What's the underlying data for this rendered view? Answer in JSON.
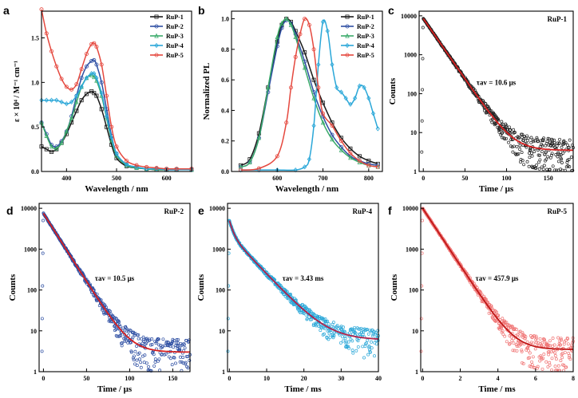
{
  "chart_data": [
    {
      "id": "a",
      "panel_label": "a",
      "type": "line",
      "xlabel": "Wavelength / nm",
      "ylabel": "ε × 10⁴ / M⁻¹ cm⁻¹",
      "xlim": [
        350,
        650
      ],
      "ylim": [
        0.0,
        1.8
      ],
      "yscale": "linear",
      "xticks": [
        400,
        500,
        600
      ],
      "yticks": [
        0.0,
        0.5,
        1.0,
        1.5
      ],
      "xtick_labels": [
        "400",
        "500",
        "600"
      ],
      "ytick_labels": [
        "0.0",
        "0.5",
        "1.0",
        "1.5"
      ],
      "legend": "top-right",
      "series": [
        {
          "name": "RuP-1",
          "color": "#1a1a1a",
          "marker": "square",
          "x": [
            350,
            360,
            370,
            380,
            390,
            400,
            410,
            420,
            430,
            440,
            450,
            455,
            460,
            470,
            480,
            490,
            500,
            520,
            540,
            560,
            580,
            600,
            620,
            650
          ],
          "y": [
            0.28,
            0.25,
            0.22,
            0.25,
            0.32,
            0.42,
            0.55,
            0.68,
            0.8,
            0.87,
            0.9,
            0.88,
            0.85,
            0.7,
            0.5,
            0.3,
            0.15,
            0.06,
            0.04,
            0.03,
            0.02,
            0.02,
            0.02,
            0.02
          ]
        },
        {
          "name": "RuP-2",
          "color": "#2e4fa3",
          "marker": "circle",
          "x": [
            350,
            360,
            370,
            380,
            390,
            400,
            410,
            420,
            430,
            440,
            450,
            455,
            460,
            470,
            480,
            490,
            500,
            520,
            540,
            560,
            580,
            600,
            620,
            650
          ],
          "y": [
            0.55,
            0.42,
            0.3,
            0.28,
            0.34,
            0.45,
            0.62,
            0.85,
            1.05,
            1.18,
            1.24,
            1.25,
            1.2,
            1.0,
            0.7,
            0.4,
            0.2,
            0.08,
            0.05,
            0.03,
            0.03,
            0.02,
            0.02,
            0.02
          ]
        },
        {
          "name": "RuP-3",
          "color": "#3aaa6a",
          "marker": "triangle",
          "x": [
            350,
            360,
            370,
            380,
            390,
            400,
            410,
            420,
            430,
            440,
            450,
            455,
            460,
            470,
            480,
            490,
            500,
            520,
            540,
            560,
            580,
            600,
            620,
            650
          ],
          "y": [
            0.55,
            0.4,
            0.28,
            0.26,
            0.32,
            0.45,
            0.6,
            0.78,
            0.95,
            1.05,
            1.08,
            1.06,
            1.02,
            0.85,
            0.6,
            0.35,
            0.18,
            0.07,
            0.04,
            0.03,
            0.02,
            0.02,
            0.02,
            0.02
          ]
        },
        {
          "name": "RuP-4",
          "color": "#2aa7d8",
          "marker": "diamond",
          "x": [
            350,
            360,
            370,
            380,
            390,
            400,
            410,
            420,
            430,
            440,
            450,
            455,
            460,
            470,
            480,
            490,
            500,
            520,
            540,
            560,
            580,
            600,
            620,
            650
          ],
          "y": [
            0.8,
            0.8,
            0.8,
            0.8,
            0.78,
            0.76,
            0.78,
            0.85,
            0.95,
            1.05,
            1.1,
            1.1,
            1.05,
            0.88,
            0.62,
            0.38,
            0.2,
            0.08,
            0.05,
            0.03,
            0.03,
            0.02,
            0.02,
            0.02
          ]
        },
        {
          "name": "RuP-5",
          "color": "#e5483e",
          "marker": "circle",
          "x": [
            350,
            360,
            370,
            380,
            390,
            400,
            410,
            420,
            430,
            440,
            450,
            455,
            460,
            470,
            480,
            490,
            500,
            520,
            540,
            560,
            580,
            600,
            620,
            650
          ],
          "y": [
            1.82,
            1.55,
            1.35,
            1.18,
            1.04,
            0.95,
            0.92,
            0.98,
            1.15,
            1.32,
            1.43,
            1.44,
            1.4,
            1.2,
            0.85,
            0.5,
            0.28,
            0.12,
            0.07,
            0.05,
            0.04,
            0.03,
            0.03,
            0.03
          ]
        }
      ]
    },
    {
      "id": "b",
      "panel_label": "b",
      "type": "line",
      "xlabel": "Wavelength / nm",
      "ylabel": "Normalized PL",
      "xlim": [
        500,
        830
      ],
      "ylim": [
        0.0,
        1.05
      ],
      "yscale": "linear",
      "xticks": [
        600,
        700,
        800
      ],
      "yticks": [
        0.0,
        0.2,
        0.4,
        0.6,
        0.8,
        1.0
      ],
      "xtick_labels": [
        "600",
        "700",
        "800"
      ],
      "ytick_labels": [
        "0.0",
        "0.2",
        "0.4",
        "0.6",
        "0.8",
        "1.0"
      ],
      "legend": "top-right",
      "series": [
        {
          "name": "RuP-1",
          "color": "#1a1a1a",
          "marker": "square",
          "x": [
            520,
            540,
            560,
            580,
            600,
            610,
            620,
            630,
            640,
            660,
            680,
            700,
            720,
            740,
            760,
            780,
            800,
            820
          ],
          "y": [
            0.04,
            0.08,
            0.25,
            0.55,
            0.85,
            0.96,
            1.0,
            0.98,
            0.92,
            0.78,
            0.6,
            0.45,
            0.32,
            0.22,
            0.15,
            0.1,
            0.07,
            0.05
          ]
        },
        {
          "name": "RuP-2",
          "color": "#2e4fa3",
          "marker": "circle",
          "x": [
            520,
            540,
            560,
            580,
            600,
            610,
            620,
            630,
            640,
            660,
            680,
            700,
            720,
            740,
            760,
            780,
            800,
            820
          ],
          "y": [
            0.03,
            0.06,
            0.22,
            0.52,
            0.82,
            0.94,
            0.99,
            0.97,
            0.9,
            0.72,
            0.52,
            0.36,
            0.24,
            0.16,
            0.1,
            0.07,
            0.05,
            0.04
          ]
        },
        {
          "name": "RuP-3",
          "color": "#3aaa6a",
          "marker": "triangle",
          "x": [
            520,
            540,
            560,
            580,
            600,
            610,
            620,
            630,
            640,
            660,
            680,
            700,
            720,
            740,
            760,
            780,
            800,
            820
          ],
          "y": [
            0.03,
            0.06,
            0.22,
            0.55,
            0.88,
            0.97,
            1.0,
            0.96,
            0.88,
            0.68,
            0.48,
            0.32,
            0.21,
            0.14,
            0.09,
            0.06,
            0.04,
            0.03
          ]
        },
        {
          "name": "RuP-4",
          "color": "#2aa7d8",
          "marker": "diamond",
          "x": [
            520,
            560,
            600,
            640,
            660,
            670,
            680,
            690,
            700,
            710,
            720,
            730,
            740,
            750,
            760,
            770,
            780,
            790,
            800,
            810,
            820
          ],
          "y": [
            0.01,
            0.01,
            0.01,
            0.01,
            0.03,
            0.08,
            0.3,
            0.7,
            0.98,
            0.92,
            0.7,
            0.55,
            0.52,
            0.48,
            0.44,
            0.48,
            0.56,
            0.55,
            0.48,
            0.38,
            0.28
          ]
        },
        {
          "name": "RuP-5",
          "color": "#e5483e",
          "marker": "circle",
          "x": [
            520,
            560,
            600,
            620,
            630,
            640,
            650,
            660,
            670,
            680,
            690,
            700,
            720,
            740,
            760,
            780,
            800,
            820
          ],
          "y": [
            0.01,
            0.02,
            0.1,
            0.32,
            0.55,
            0.75,
            0.9,
            1.0,
            0.96,
            0.8,
            0.55,
            0.38,
            0.3,
            0.2,
            0.12,
            0.07,
            0.04,
            0.03
          ]
        }
      ]
    },
    {
      "id": "c",
      "panel_label": "c",
      "type": "scatter",
      "title": "RuP-1",
      "xlabel": "Time / μs",
      "ylabel": "Counts",
      "annotation": "τav = 10.6 μs",
      "xlim": [
        -5,
        180
      ],
      "ylim": [
        1,
        10000
      ],
      "yscale": "log",
      "xticks": [
        0,
        50,
        100,
        150
      ],
      "yticks": [
        1,
        10,
        100,
        1000,
        10000
      ],
      "xtick_labels": [
        "0",
        "50",
        "100",
        "150"
      ],
      "ytick_labels": [
        "1",
        "10",
        "100",
        "1000",
        "10000"
      ],
      "decay": {
        "peak": 8500,
        "tau": 14.0,
        "floor": 3.5,
        "xmax": 180
      },
      "data_color": "#222222",
      "fit_color": "#d62020"
    },
    {
      "id": "d",
      "panel_label": "d",
      "type": "scatter",
      "title": "RuP-2",
      "xlabel": "Time / μs",
      "ylabel": "Counts",
      "annotation": "τav = 10.5 μs",
      "xlim": [
        -5,
        170
      ],
      "ylim": [
        1,
        10000
      ],
      "yscale": "log",
      "xticks": [
        0,
        50,
        100,
        150
      ],
      "yticks": [
        1,
        10,
        100,
        1000,
        10000
      ],
      "xtick_labels": [
        "0",
        "50",
        "100",
        "150"
      ],
      "ytick_labels": [
        "1",
        "10",
        "100",
        "1000",
        "10000"
      ],
      "decay": {
        "peak": 7500,
        "tau": 13.0,
        "floor": 3.0,
        "xmax": 170
      },
      "data_color": "#2e4fa3",
      "fit_color": "#d62020"
    },
    {
      "id": "e",
      "panel_label": "e",
      "type": "scatter",
      "title": "RuP-4",
      "xlabel": "Time / ms",
      "ylabel": "Counts",
      "annotation": "τav = 3.43 ms",
      "xlim": [
        -0.5,
        40
      ],
      "ylim": [
        1,
        10000
      ],
      "yscale": "log",
      "xticks": [
        0,
        10,
        20,
        30,
        40
      ],
      "yticks": [
        1,
        10,
        100,
        1000,
        10000
      ],
      "xtick_labels": [
        "0",
        "10",
        "20",
        "30",
        "40"
      ],
      "ytick_labels": [
        "1",
        "10",
        "100",
        "1000",
        "10000"
      ],
      "decay": {
        "peak": 5000,
        "tau": 4.5,
        "floor": 6.0,
        "xmax": 40,
        "biexp": true
      },
      "data_color": "#2aa7d8",
      "fit_color": "#b0204a"
    },
    {
      "id": "f",
      "panel_label": "f",
      "type": "scatter",
      "title": "RuP-5",
      "xlabel": "Time / ms",
      "ylabel": "Counts",
      "annotation": "τav = 457.9 μs",
      "xlim": [
        -0.1,
        8
      ],
      "ylim": [
        1,
        10000
      ],
      "yscale": "log",
      "xticks": [
        0,
        2,
        4,
        6,
        8
      ],
      "yticks": [
        1,
        10,
        100,
        1000,
        10000
      ],
      "xtick_labels": [
        "0",
        "2",
        "4",
        "6",
        "8"
      ],
      "ytick_labels": [
        "1",
        "10",
        "100",
        "1000",
        "10000"
      ],
      "decay": {
        "peak": 10000,
        "tau": 0.62,
        "floor": 3.5,
        "xmax": 8
      },
      "data_color": "#f07575",
      "fit_color": "#c01818"
    }
  ]
}
